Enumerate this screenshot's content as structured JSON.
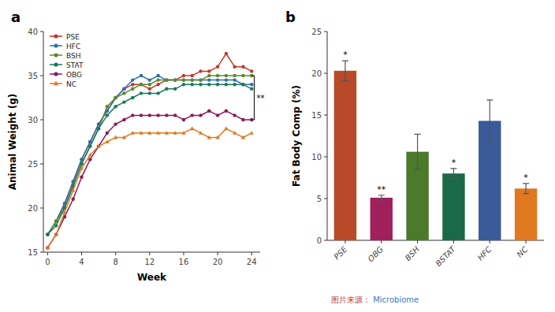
{
  "chart_data": [
    {
      "type": "line",
      "title": "a",
      "x": [
        0,
        1,
        2,
        3,
        4,
        5,
        6,
        7,
        8,
        9,
        10,
        11,
        12,
        13,
        14,
        15,
        16,
        17,
        18,
        19,
        20,
        21,
        22,
        23,
        24
      ],
      "xlabel": "Week",
      "ylabel": "Animal Weight (g)",
      "xlim": [
        -0.5,
        25
      ],
      "ylim": [
        15,
        40
      ],
      "xticks": [
        0,
        4,
        8,
        12,
        16,
        20,
        24
      ],
      "yticks": [
        15,
        20,
        25,
        30,
        35,
        40
      ],
      "legend": "upper left",
      "grid": false,
      "series": [
        {
          "name": "PSE",
          "color": "#c0392b",
          "marker": "circle",
          "values": [
            17.0,
            18.5,
            20.5,
            23.0,
            25.5,
            27.5,
            29.5,
            31.0,
            32.5,
            33.5,
            34.0,
            34.0,
            33.5,
            34.0,
            34.5,
            34.5,
            35.0,
            35.0,
            35.5,
            35.5,
            36.0,
            37.5,
            36.0,
            36.0,
            35.5
          ]
        },
        {
          "name": "HFC",
          "color": "#2e6db4",
          "marker": "circle",
          "values": [
            17.0,
            18.5,
            20.5,
            23.0,
            25.5,
            27.5,
            29.5,
            31.0,
            32.5,
            33.5,
            34.5,
            35.0,
            34.5,
            35.0,
            34.5,
            34.5,
            34.5,
            34.5,
            34.5,
            34.5,
            34.5,
            34.5,
            34.5,
            34.0,
            34.0
          ]
        },
        {
          "name": "BSH",
          "color": "#5a8a2a",
          "marker": "circle",
          "values": [
            17.0,
            18.5,
            20.0,
            22.5,
            25.0,
            27.0,
            29.0,
            31.5,
            32.5,
            33.0,
            33.5,
            34.0,
            34.0,
            34.5,
            34.5,
            34.5,
            34.5,
            34.5,
            34.5,
            35.0,
            35.0,
            35.0,
            35.0,
            35.0,
            35.0
          ]
        },
        {
          "name": "STAT",
          "color": "#1a7a5a",
          "marker": "circle",
          "values": [
            17.0,
            18.0,
            20.0,
            22.5,
            25.0,
            27.0,
            29.0,
            30.5,
            31.5,
            32.0,
            32.5,
            33.0,
            33.0,
            33.0,
            33.5,
            33.5,
            34.0,
            34.0,
            34.0,
            34.0,
            34.0,
            34.0,
            34.0,
            34.0,
            33.5
          ]
        },
        {
          "name": "OBG",
          "color": "#8b1a5a",
          "marker": "circle",
          "values": [
            15.5,
            17.0,
            19.0,
            21.0,
            23.5,
            25.5,
            27.0,
            28.5,
            29.5,
            30.0,
            30.5,
            30.5,
            30.5,
            30.5,
            30.5,
            30.5,
            30.0,
            30.5,
            30.5,
            31.0,
            30.5,
            31.0,
            30.5,
            30.0,
            30.0
          ]
        },
        {
          "name": "NC",
          "color": "#e07820",
          "marker": "triangle",
          "values": [
            15.5,
            17.0,
            19.5,
            22.0,
            24.5,
            26.0,
            27.0,
            27.5,
            28.0,
            28.0,
            28.5,
            28.5,
            28.5,
            28.5,
            28.5,
            28.5,
            28.5,
            29.0,
            28.5,
            28.0,
            28.0,
            29.0,
            28.5,
            28.0,
            28.5
          ]
        }
      ],
      "annotations": [
        {
          "text": "**",
          "x": 24.3,
          "y": [
            30.0,
            35.0
          ]
        }
      ]
    },
    {
      "type": "bar",
      "title": "b",
      "categories": [
        "PSE",
        "OBG",
        "BSH",
        "BSTAT",
        "HFC",
        "NC"
      ],
      "values": [
        20.3,
        5.1,
        10.6,
        8.0,
        14.3,
        6.2
      ],
      "errors": [
        1.2,
        0.3,
        2.1,
        0.6,
        2.5,
        0.6
      ],
      "colors": [
        "#b84a2a",
        "#a0205a",
        "#4a7a2a",
        "#1a6a4a",
        "#3a5a9a",
        "#e07820"
      ],
      "ylabel": "Fat Body Comp (%)",
      "ylim": [
        0,
        25
      ],
      "yticks": [
        0,
        5,
        10,
        15,
        20,
        25
      ],
      "grid": false,
      "annotations": [
        {
          "text": "*",
          "index": 0
        },
        {
          "text": "**",
          "index": 1
        },
        {
          "text": "*",
          "index": 3
        },
        {
          "text": "*",
          "index": 5
        },
        {
          "text": "图片来源：",
          "color": "#c0392b"
        },
        {
          "text": " Microbiome",
          "color": "#3a7abf"
        }
      ]
    }
  ]
}
